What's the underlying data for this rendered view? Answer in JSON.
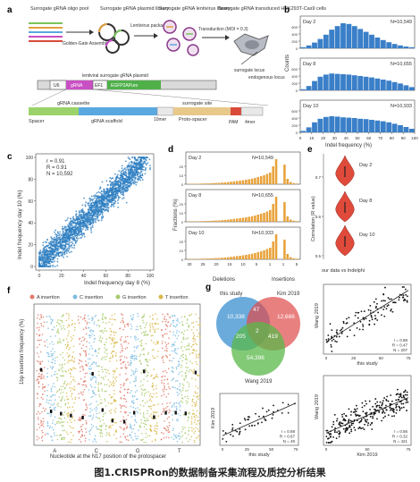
{
  "panels": {
    "a": {
      "letter": "a",
      "steps": [
        "Surrogate gRNA oligo pool",
        "Surrogate gRNA plasmid library",
        "Surrogate gRNA lentivirus library",
        "Surrogate gRNA transduced HEK293T-Cas9 cells"
      ],
      "arrows": [
        "Golden-Gate Assembly",
        "Lentivirus packaging",
        "Transduction (MOI = 0.3)"
      ],
      "loci": [
        "surrogate locus",
        "endogenous locus"
      ],
      "plasmid_label": "lentiviral surrogate gRNA plasmid",
      "plasmid_parts": [
        "U6",
        "gRNA",
        "EF1",
        "EGFP2APuro"
      ],
      "cassette_labels": [
        "gRNA cassette",
        "surrogate site"
      ],
      "cassette_parts": [
        "Spacer",
        "gRNA scaffold",
        "10mer",
        "Proto-spacer",
        "PAM",
        "4mer"
      ],
      "colors": {
        "spacer": "#9bd36a",
        "scaffold": "#5aa8e0",
        "proto": "#e8c98a",
        "pam": "#d94a3a",
        "gfp": "#4fb04a",
        "grna": "#c94fc4"
      }
    },
    "b": {
      "letter": "b",
      "xlabel": "Indel frequency (%)",
      "ylabel": "Counts",
      "xticks": [
        "0",
        "10",
        "20",
        "30",
        "40",
        "50",
        "60",
        "70",
        "80",
        "90",
        "100"
      ],
      "yticks": [
        "0",
        "200",
        "400",
        "600"
      ],
      "subplots": [
        {
          "day": "Day 2",
          "n": "N=10,549"
        },
        {
          "day": "Day 8",
          "n": "N=10,655"
        },
        {
          "day": "Day 10",
          "n": "N=10,933"
        }
      ]
    },
    "c": {
      "letter": "c",
      "stats": [
        "r = 0.91",
        "R = 0.91",
        "N = 10,592"
      ],
      "xlabel": "Indel frequency day 8 (%)",
      "ylabel": "Indel frequency day 10 (%)",
      "ticks": [
        "0",
        "20",
        "40",
        "60",
        "80",
        "100"
      ]
    },
    "d": {
      "letter": "d",
      "ylabel": "Fractions (%)",
      "xticks": [
        "30",
        "25",
        "20",
        "15",
        "10",
        "5",
        "1",
        "1",
        "5"
      ],
      "xgroups": [
        "Deletions",
        "Insertions"
      ],
      "yticks": [
        "0",
        "10",
        "20"
      ],
      "subplots": [
        {
          "day": "Day 2",
          "n": "N=10,549"
        },
        {
          "day": "Day 8",
          "n": "N=10,655"
        },
        {
          "day": "Day 10",
          "n": "N=10,933"
        }
      ]
    },
    "e": {
      "letter": "e",
      "ylabel": "Correlation (R value)",
      "xlabel": "our data vs Indelphi",
      "yticks": [
        "0.5",
        "0.6",
        "0.7"
      ],
      "days": [
        "Day 2",
        "Day 8",
        "Day 10"
      ]
    },
    "f": {
      "letter": "f",
      "legend": [
        "A insertion",
        "C insertion",
        "G insertion",
        "T insertion"
      ],
      "ylabel": "1bp insertion frequency (%)",
      "xlabel": "Nucleotide at the N17 position of the protospacer",
      "xcats": [
        "A",
        "C",
        "G",
        "T"
      ],
      "colors": [
        "#e07a6a",
        "#7dbde0",
        "#a8c96a",
        "#d8b84a"
      ]
    },
    "g": {
      "letter": "g",
      "venn": {
        "labels": [
          "this study",
          "Kim 2019",
          "Wang 2019"
        ],
        "counts": [
          "10,338",
          "12,686",
          "47",
          "2",
          "205",
          "419",
          "54,396"
        ]
      },
      "scatters": [
        {
          "ylabel": "Wang 2019",
          "xlabel": "this study",
          "stats": [
            "r = 0.88",
            "R = 0.47",
            "N = 207"
          ],
          "xticks": [
            "0",
            "25",
            "50",
            "75"
          ]
        },
        {
          "ylabel": "Kim 2019",
          "xlabel": "this study",
          "stats": [
            "r = 0.68",
            "R = 0.67",
            "N = 49"
          ],
          "xticks": [
            "0",
            "25",
            "50",
            "75"
          ]
        },
        {
          "ylabel": "Wang 2019",
          "xlabel": "Kim 2019",
          "stats": [
            "r = 0.56",
            "R = 0.32",
            "N = 421"
          ],
          "xticks": [
            "0",
            "50",
            "75"
          ]
        }
      ]
    }
  },
  "caption": "图1.CRISPRon的数据制备采集流程及质控分析结果"
}
